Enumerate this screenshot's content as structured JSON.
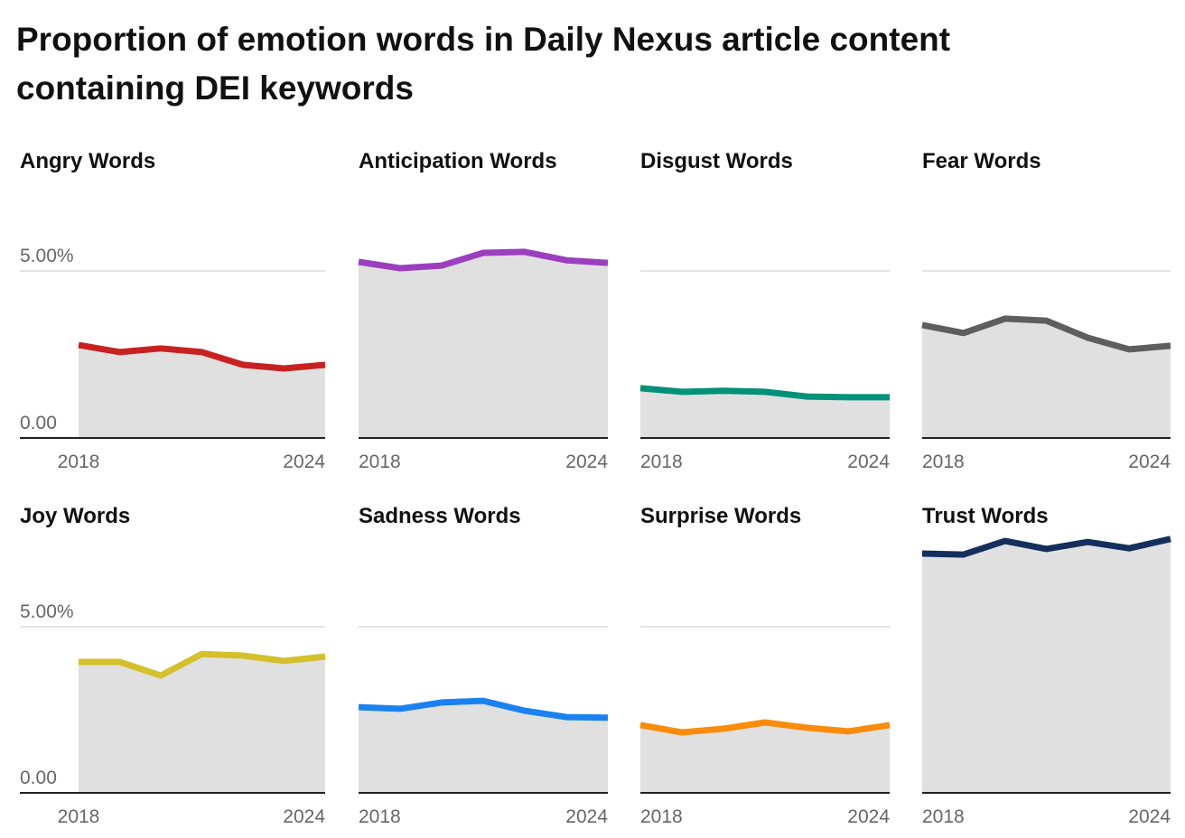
{
  "title": "Proportion of emotion words in Daily Nexus article content containing DEI keywords",
  "chart_data": [
    {
      "type": "area",
      "title": "Angry Words",
      "x": [
        2018,
        2019,
        2020,
        2021,
        2022,
        2023,
        2024
      ],
      "values": [
        2.78,
        2.57,
        2.68,
        2.57,
        2.19,
        2.08,
        2.19
      ],
      "color": "#c82121",
      "xlim": [
        2018,
        2024
      ],
      "xticks": [
        2018,
        2024
      ],
      "ylim": [
        0,
        8
      ],
      "yticks": [
        {
          "value": 0,
          "label": "0.00"
        },
        {
          "value": 5,
          "label": "5.00%"
        }
      ]
    },
    {
      "type": "area",
      "title": "Anticipation Words",
      "x": [
        2018,
        2019,
        2020,
        2021,
        2022,
        2023,
        2024
      ],
      "values": [
        5.27,
        5.08,
        5.16,
        5.54,
        5.57,
        5.32,
        5.24
      ],
      "color": "#9b3fbf",
      "xlim": [
        2018,
        2024
      ],
      "xticks": [
        2018,
        2024
      ],
      "ylim": [
        0,
        8
      ]
    },
    {
      "type": "area",
      "title": "Disgust Words",
      "x": [
        2018,
        2019,
        2020,
        2021,
        2022,
        2023,
        2024
      ],
      "values": [
        1.49,
        1.38,
        1.41,
        1.38,
        1.24,
        1.22,
        1.22
      ],
      "color": "#00917a",
      "xlim": [
        2018,
        2024
      ],
      "xticks": [
        2018,
        2024
      ],
      "ylim": [
        0,
        8
      ]
    },
    {
      "type": "area",
      "title": "Fear Words",
      "x": [
        2018,
        2019,
        2020,
        2021,
        2022,
        2023,
        2024
      ],
      "values": [
        3.38,
        3.14,
        3.57,
        3.51,
        3.0,
        2.65,
        2.76
      ],
      "color": "#5e5e5e",
      "xlim": [
        2018,
        2024
      ],
      "xticks": [
        2018,
        2024
      ],
      "ylim": [
        0,
        8
      ]
    },
    {
      "type": "area",
      "title": "Joy Words",
      "x": [
        2018,
        2019,
        2020,
        2021,
        2022,
        2023,
        2024
      ],
      "values": [
        3.94,
        3.94,
        3.53,
        4.18,
        4.13,
        3.97,
        4.1
      ],
      "color": "#d4c02a",
      "xlim": [
        2018,
        2024
      ],
      "xticks": [
        2018,
        2024
      ],
      "ylim": [
        0,
        8
      ],
      "yticks": [
        {
          "value": 0,
          "label": "0.00"
        },
        {
          "value": 5,
          "label": "5.00%"
        }
      ]
    },
    {
      "type": "area",
      "title": "Sadness Words",
      "x": [
        2018,
        2019,
        2020,
        2021,
        2022,
        2023,
        2024
      ],
      "values": [
        2.58,
        2.53,
        2.72,
        2.77,
        2.47,
        2.28,
        2.26
      ],
      "color": "#1a82f0",
      "xlim": [
        2018,
        2024
      ],
      "xticks": [
        2018,
        2024
      ],
      "ylim": [
        0,
        8
      ]
    },
    {
      "type": "area",
      "title": "Surprise Words",
      "x": [
        2018,
        2019,
        2020,
        2021,
        2022,
        2023,
        2024
      ],
      "values": [
        2.04,
        1.82,
        1.93,
        2.12,
        1.96,
        1.85,
        2.04
      ],
      "color": "#f98c0b",
      "xlim": [
        2018,
        2024
      ],
      "xticks": [
        2018,
        2024
      ],
      "ylim": [
        0,
        8
      ]
    },
    {
      "type": "area",
      "title": "Trust Words",
      "x": [
        2018,
        2019,
        2020,
        2021,
        2022,
        2023,
        2024
      ],
      "values": [
        7.2,
        7.17,
        7.58,
        7.34,
        7.55,
        7.36,
        7.64
      ],
      "color": "#142f5c",
      "xlim": [
        2018,
        2024
      ],
      "xticks": [
        2018,
        2024
      ],
      "ylim": [
        0,
        8
      ]
    }
  ]
}
